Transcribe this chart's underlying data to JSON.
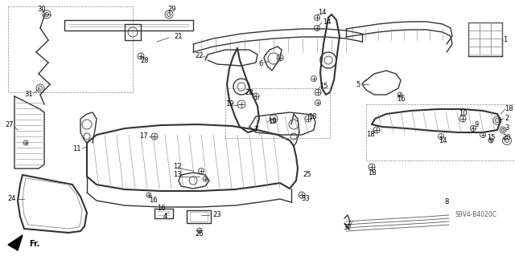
{
  "bg_color": "#ffffff",
  "line_color": "#333333",
  "text_color": "#000000",
  "watermark": "S9V4-B4020C",
  "figsize": [
    6.4,
    3.19
  ],
  "dpi": 100,
  "gray": "#555555",
  "lgray": "#888888",
  "dgray": "#222222"
}
